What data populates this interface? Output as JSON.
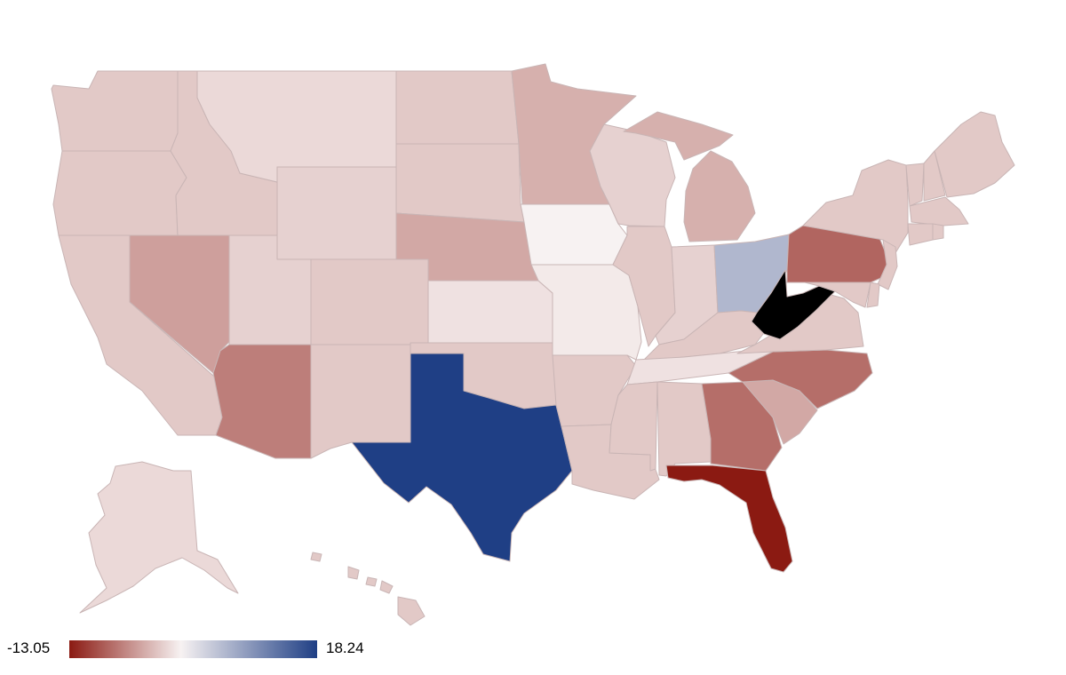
{
  "map": {
    "type": "us-states-choropleth",
    "legend": {
      "min": "-13.05",
      "max": "18.24"
    },
    "scale_colors": {
      "min": "#8b1a12",
      "mid": "#f7f2f2",
      "max": "#1f3f85",
      "no_data": "#000000"
    },
    "region_values": {
      "WA": -2.5,
      "OR": -2.5,
      "CA": -2.5,
      "ID": -2.5,
      "NV": -5.0,
      "MT": -1.5,
      "WY": -2.0,
      "UT": -2.0,
      "AZ": -7.0,
      "CO": -2.5,
      "NM": -2.5,
      "ND": -2.5,
      "SD": -2.5,
      "NE": -4.5,
      "KS": -1.0,
      "OK": -2.5,
      "TX": 18.24,
      "MN": -4.0,
      "IA": 0.0,
      "MO": -0.5,
      "AR": -2.5,
      "LA": -2.5,
      "WI": -2.0,
      "IL": -2.5,
      "MI": -4.0,
      "IN": -2.0,
      "OH": 6.0,
      "KY": -2.5,
      "TN": -1.0,
      "MS": -2.5,
      "AL": -2.5,
      "GA": -8.0,
      "FL": -13.05,
      "SC": -4.5,
      "NC": -8.0,
      "VA": -2.5,
      "WV": null,
      "PA": -8.5,
      "NY": -2.5,
      "VT": -2.5,
      "NH": -2.5,
      "ME": -2.5,
      "MA": -2.5,
      "CT": -2.5,
      "RI": -2.5,
      "NJ": -2.5,
      "DE": -2.5,
      "MD": -2.5,
      "AK": -1.5,
      "HI": -2.5
    }
  }
}
